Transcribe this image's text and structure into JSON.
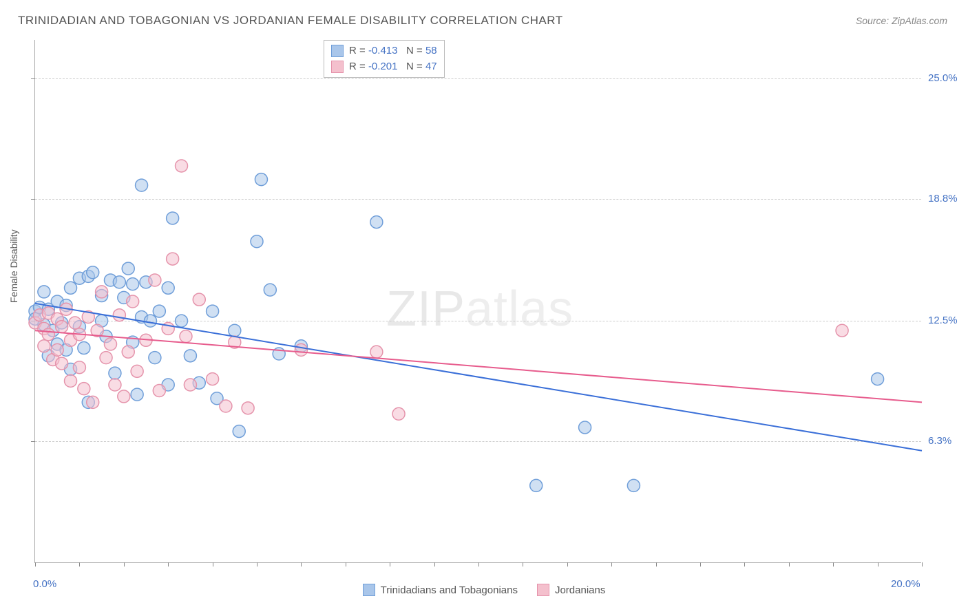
{
  "title": "TRINIDADIAN AND TOBAGONIAN VS JORDANIAN FEMALE DISABILITY CORRELATION CHART",
  "source_label": "Source: ",
  "source_value": "ZipAtlas.com",
  "ylabel": "Female Disability",
  "watermark_left": "ZIP",
  "watermark_right": "atlas",
  "chart": {
    "type": "scatter",
    "x_min": 0.0,
    "x_max": 20.0,
    "y_min": 0.0,
    "y_max": 27.0,
    "x_tick_label_min": "0.0%",
    "x_tick_label_max": "20.0%",
    "x_tick_color": "#4472c4",
    "y_ticks": [
      {
        "val": 6.3,
        "label": "6.3%"
      },
      {
        "val": 12.5,
        "label": "12.5%"
      },
      {
        "val": 18.8,
        "label": "18.8%"
      },
      {
        "val": 25.0,
        "label": "25.0%"
      }
    ],
    "y_tick_color": "#4472c4",
    "grid_color": "#cccccc",
    "axis_color": "#aaaaaa",
    "background": "#ffffff",
    "marker_radius": 9,
    "marker_opacity": 0.55,
    "line_width": 2,
    "series": [
      {
        "name": "Trinidadians and Tobagonians",
        "fill": "#a9c6ea",
        "stroke": "#6f9ed9",
        "line_color": "#3a6fd8",
        "trend_start_y": 13.4,
        "trend_end_y": 5.8,
        "R": "-0.413",
        "N": "58",
        "points": [
          [
            0.0,
            13.0
          ],
          [
            0.0,
            12.6
          ],
          [
            0.1,
            13.2
          ],
          [
            0.2,
            12.3
          ],
          [
            0.2,
            14.0
          ],
          [
            0.3,
            10.7
          ],
          [
            0.3,
            13.1
          ],
          [
            0.4,
            12.0
          ],
          [
            0.5,
            13.5
          ],
          [
            0.5,
            11.3
          ],
          [
            0.6,
            12.4
          ],
          [
            0.7,
            13.3
          ],
          [
            0.7,
            11.0
          ],
          [
            0.8,
            14.2
          ],
          [
            0.8,
            10.0
          ],
          [
            1.0,
            14.7
          ],
          [
            1.0,
            12.2
          ],
          [
            1.1,
            11.1
          ],
          [
            1.2,
            14.8
          ],
          [
            1.2,
            8.3
          ],
          [
            1.3,
            15.0
          ],
          [
            1.5,
            12.5
          ],
          [
            1.5,
            13.8
          ],
          [
            1.6,
            11.7
          ],
          [
            1.7,
            14.6
          ],
          [
            1.8,
            9.8
          ],
          [
            1.9,
            14.5
          ],
          [
            2.0,
            13.7
          ],
          [
            2.1,
            15.2
          ],
          [
            2.2,
            11.4
          ],
          [
            2.2,
            14.4
          ],
          [
            2.3,
            8.7
          ],
          [
            2.4,
            12.7
          ],
          [
            2.4,
            19.5
          ],
          [
            2.5,
            14.5
          ],
          [
            2.6,
            12.5
          ],
          [
            2.7,
            10.6
          ],
          [
            2.8,
            13.0
          ],
          [
            3.0,
            14.2
          ],
          [
            3.0,
            9.2
          ],
          [
            3.1,
            17.8
          ],
          [
            3.3,
            12.5
          ],
          [
            3.5,
            10.7
          ],
          [
            3.7,
            9.3
          ],
          [
            4.0,
            13.0
          ],
          [
            4.1,
            8.5
          ],
          [
            4.5,
            12.0
          ],
          [
            4.6,
            6.8
          ],
          [
            5.0,
            16.6
          ],
          [
            5.1,
            19.8
          ],
          [
            5.3,
            14.1
          ],
          [
            5.5,
            10.8
          ],
          [
            6.0,
            11.2
          ],
          [
            7.7,
            17.6
          ],
          [
            11.3,
            4.0
          ],
          [
            12.4,
            7.0
          ],
          [
            13.5,
            4.0
          ],
          [
            19.0,
            9.5
          ]
        ]
      },
      {
        "name": "Jordanians",
        "fill": "#f4c0cd",
        "stroke": "#e593ab",
        "line_color": "#e75c8d",
        "trend_start_y": 12.0,
        "trend_end_y": 8.3,
        "R": "-0.201",
        "N": "47",
        "points": [
          [
            0.0,
            12.4
          ],
          [
            0.1,
            12.8
          ],
          [
            0.2,
            11.2
          ],
          [
            0.2,
            12.1
          ],
          [
            0.3,
            11.8
          ],
          [
            0.3,
            12.9
          ],
          [
            0.4,
            10.5
          ],
          [
            0.5,
            12.6
          ],
          [
            0.5,
            11.0
          ],
          [
            0.6,
            12.2
          ],
          [
            0.6,
            10.3
          ],
          [
            0.7,
            13.1
          ],
          [
            0.8,
            11.5
          ],
          [
            0.8,
            9.4
          ],
          [
            0.9,
            12.4
          ],
          [
            1.0,
            10.1
          ],
          [
            1.0,
            11.8
          ],
          [
            1.1,
            9.0
          ],
          [
            1.2,
            12.7
          ],
          [
            1.3,
            8.3
          ],
          [
            1.4,
            12.0
          ],
          [
            1.5,
            14.0
          ],
          [
            1.6,
            10.6
          ],
          [
            1.7,
            11.3
          ],
          [
            1.8,
            9.2
          ],
          [
            1.9,
            12.8
          ],
          [
            2.0,
            8.6
          ],
          [
            2.1,
            10.9
          ],
          [
            2.2,
            13.5
          ],
          [
            2.3,
            9.9
          ],
          [
            2.5,
            11.5
          ],
          [
            2.7,
            14.6
          ],
          [
            2.8,
            8.9
          ],
          [
            3.0,
            12.1
          ],
          [
            3.1,
            15.7
          ],
          [
            3.3,
            20.5
          ],
          [
            3.4,
            11.7
          ],
          [
            3.5,
            9.2
          ],
          [
            3.7,
            13.6
          ],
          [
            4.0,
            9.5
          ],
          [
            4.3,
            8.1
          ],
          [
            4.5,
            11.4
          ],
          [
            4.8,
            8.0
          ],
          [
            6.0,
            11.0
          ],
          [
            7.7,
            10.9
          ],
          [
            8.2,
            7.7
          ],
          [
            18.2,
            12.0
          ]
        ]
      }
    ]
  },
  "legend_top": {
    "R_label": "R =",
    "N_label": "N =",
    "value_color": "#4472c4"
  },
  "legend_bottom_items": [
    {
      "label": "Trinidadians and Tobagonians",
      "fill": "#a9c6ea",
      "stroke": "#6f9ed9"
    },
    {
      "label": "Jordanians",
      "fill": "#f4c0cd",
      "stroke": "#e593ab"
    }
  ]
}
